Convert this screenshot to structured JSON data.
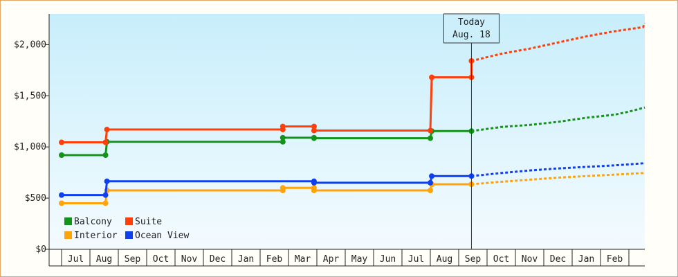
{
  "chart_data": {
    "type": "line",
    "title": "",
    "xlabel": "",
    "ylabel": "",
    "ylim": [
      0,
      2300
    ],
    "yticks": [
      0,
      500,
      1000,
      1500,
      2000
    ],
    "ytick_labels": [
      "$0",
      "$500",
      "$1,000",
      "$1,500",
      "$2,000"
    ],
    "xtick_labels": [
      "Jul",
      "Aug",
      "Sep",
      "Oct",
      "Nov",
      "Dec",
      "Jan",
      "Feb",
      "Mar",
      "Apr",
      "May",
      "Jun",
      "Jul",
      "Aug",
      "Sep",
      "Oct",
      "Nov",
      "Dec",
      "Jan",
      "Feb"
    ],
    "today": {
      "label": "Today",
      "date": "Aug. 18",
      "x": 14.45
    },
    "legend_position": "bottom-left",
    "series": [
      {
        "name": "Balcony",
        "color": "#13931a",
        "points": [
          [
            0,
            920
          ],
          [
            1.55,
            920
          ],
          [
            1.6,
            1050
          ],
          [
            7.8,
            1050
          ],
          [
            7.8,
            1090
          ],
          [
            8.9,
            1090
          ],
          [
            8.9,
            1085
          ],
          [
            13,
            1085
          ],
          [
            13.05,
            1155
          ],
          [
            14.45,
            1155
          ]
        ],
        "forecast": [
          [
            14.45,
            1155
          ],
          [
            15.5,
            1195
          ],
          [
            16.5,
            1215
          ],
          [
            17.5,
            1245
          ],
          [
            18.5,
            1285
          ],
          [
            19.5,
            1315
          ],
          [
            20,
            1345
          ],
          [
            21,
            1385
          ]
        ]
      },
      {
        "name": "Suite",
        "color": "#ff3e0a",
        "points": [
          [
            0,
            1045
          ],
          [
            1.55,
            1045
          ],
          [
            1.6,
            1170
          ],
          [
            7.8,
            1170
          ],
          [
            7.8,
            1200
          ],
          [
            8.9,
            1200
          ],
          [
            8.9,
            1160
          ],
          [
            13,
            1160
          ],
          [
            13.05,
            1680
          ],
          [
            14.45,
            1680
          ],
          [
            14.45,
            1840
          ]
        ],
        "forecast": [
          [
            14.45,
            1840
          ],
          [
            15.5,
            1910
          ],
          [
            16.5,
            1960
          ],
          [
            17.5,
            2020
          ],
          [
            18.5,
            2080
          ],
          [
            19.5,
            2130
          ],
          [
            20.5,
            2170
          ],
          [
            21,
            2210
          ]
        ]
      },
      {
        "name": "Interior",
        "color": "#ffa30a",
        "points": [
          [
            0,
            450
          ],
          [
            1.55,
            450
          ],
          [
            1.6,
            575
          ],
          [
            7.8,
            575
          ],
          [
            7.8,
            600
          ],
          [
            8.9,
            600
          ],
          [
            8.9,
            575
          ],
          [
            13,
            575
          ],
          [
            13.05,
            635
          ],
          [
            14.45,
            635
          ]
        ],
        "forecast": [
          [
            14.45,
            635
          ],
          [
            15.5,
            660
          ],
          [
            16.5,
            680
          ],
          [
            17.5,
            700
          ],
          [
            18.5,
            715
          ],
          [
            19.5,
            730
          ],
          [
            20.5,
            745
          ],
          [
            21,
            760
          ]
        ]
      },
      {
        "name": "Ocean View",
        "color": "#1040ee",
        "points": [
          [
            0,
            530
          ],
          [
            1.55,
            530
          ],
          [
            1.6,
            665
          ],
          [
            8.9,
            665
          ],
          [
            8.9,
            650
          ],
          [
            13,
            650
          ],
          [
            13.05,
            715
          ],
          [
            14.45,
            715
          ]
        ],
        "forecast": [
          [
            14.45,
            715
          ],
          [
            15.5,
            745
          ],
          [
            16.5,
            770
          ],
          [
            17.5,
            790
          ],
          [
            18.5,
            805
          ],
          [
            19.5,
            820
          ],
          [
            20.5,
            840
          ],
          [
            21,
            850
          ]
        ]
      }
    ]
  }
}
